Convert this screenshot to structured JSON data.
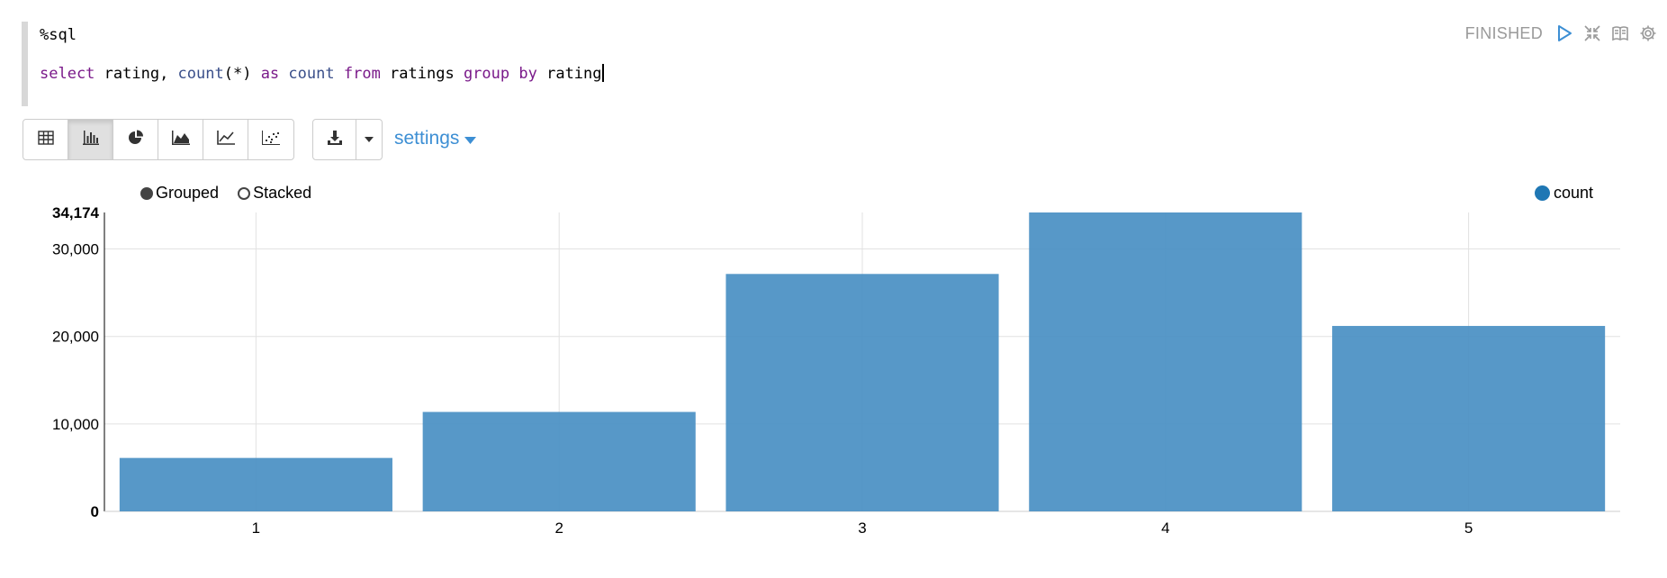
{
  "editor": {
    "magic": "%sql",
    "query_tokens": [
      {
        "t": "select",
        "c": "kw"
      },
      {
        "t": " rating, ",
        "c": "pl"
      },
      {
        "t": "count",
        "c": "fn"
      },
      {
        "t": "(*) ",
        "c": "pl"
      },
      {
        "t": "as",
        "c": "kw"
      },
      {
        "t": " ",
        "c": "pl"
      },
      {
        "t": "count",
        "c": "fn"
      },
      {
        "t": " ",
        "c": "pl"
      },
      {
        "t": "from",
        "c": "kw"
      },
      {
        "t": " ratings ",
        "c": "pl"
      },
      {
        "t": "group",
        "c": "kw"
      },
      {
        "t": " ",
        "c": "pl"
      },
      {
        "t": "by",
        "c": "kw"
      },
      {
        "t": " rating",
        "c": "pl"
      }
    ]
  },
  "status": {
    "text": "FINISHED",
    "icons": [
      "run-icon",
      "collapse-icon",
      "book-icon",
      "gear-icon"
    ]
  },
  "toolbar": {
    "viz_buttons": [
      "table-icon",
      "bar-chart-icon",
      "pie-chart-icon",
      "area-chart-icon",
      "line-chart-icon",
      "scatter-chart-icon"
    ],
    "active_viz": "bar-chart-icon",
    "download_icon": "download-icon",
    "caret_icon": "caret-down-icon",
    "settings_label": "settings"
  },
  "chart_options": {
    "grouped_label": "Grouped",
    "stacked_label": "Stacked",
    "selected": "Grouped"
  },
  "chart_data": {
    "type": "bar",
    "categories": [
      "1",
      "2",
      "3",
      "4",
      "5"
    ],
    "series": [
      {
        "name": "count",
        "color": "#4a90c4",
        "values": [
          6110,
          11370,
          27145,
          34174,
          21201
        ]
      }
    ],
    "ylim": [
      0,
      34174
    ],
    "y_ticks": [
      0,
      10000,
      20000,
      30000,
      34174
    ],
    "y_tick_labels": [
      "0",
      "10,000",
      "20,000",
      "30,000",
      "34,174"
    ],
    "grid": true,
    "legend": "top-right",
    "legend_color": "#1f77b4"
  }
}
